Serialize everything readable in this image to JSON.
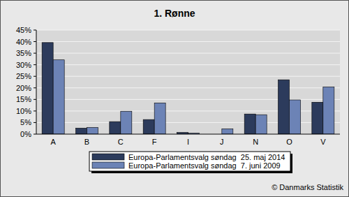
{
  "chart_data": {
    "type": "bar",
    "title": "1. Rønne",
    "categories": [
      "A",
      "B",
      "C",
      "F",
      "I",
      "J",
      "N",
      "O",
      "V"
    ],
    "series": [
      {
        "name": "Europa-Parlamentsvalg søndag  25. maj 2014",
        "color": "#2c3b5c",
        "values": [
          39.6,
          2.6,
          5.4,
          6.3,
          0.7,
          null,
          8.7,
          23.5,
          13.8
        ]
      },
      {
        "name": "Europa-Parlamentsvalg søndag  7. juni 2009",
        "color": "#6c83b6",
        "values": [
          32.1,
          2.9,
          9.9,
          13.5,
          0.4,
          2.3,
          8.4,
          14.8,
          20.4
        ]
      }
    ],
    "ylim": [
      0,
      45
    ],
    "yticks": [
      {
        "value": 0,
        "label": "0%"
      },
      {
        "value": 5,
        "label": "5%"
      },
      {
        "value": 10,
        "label": "10%"
      },
      {
        "value": 15,
        "label": "15%"
      },
      {
        "value": 20,
        "label": "20%"
      },
      {
        "value": 25,
        "label": "25%"
      },
      {
        "value": 30,
        "label": "30%"
      },
      {
        "value": 35,
        "label": "35%"
      },
      {
        "value": 40,
        "label": "40%"
      },
      {
        "value": 45,
        "label": "45%"
      }
    ],
    "grid": true,
    "legend": "bottom",
    "annotations": [
      "© Danmarks Statistik"
    ]
  }
}
